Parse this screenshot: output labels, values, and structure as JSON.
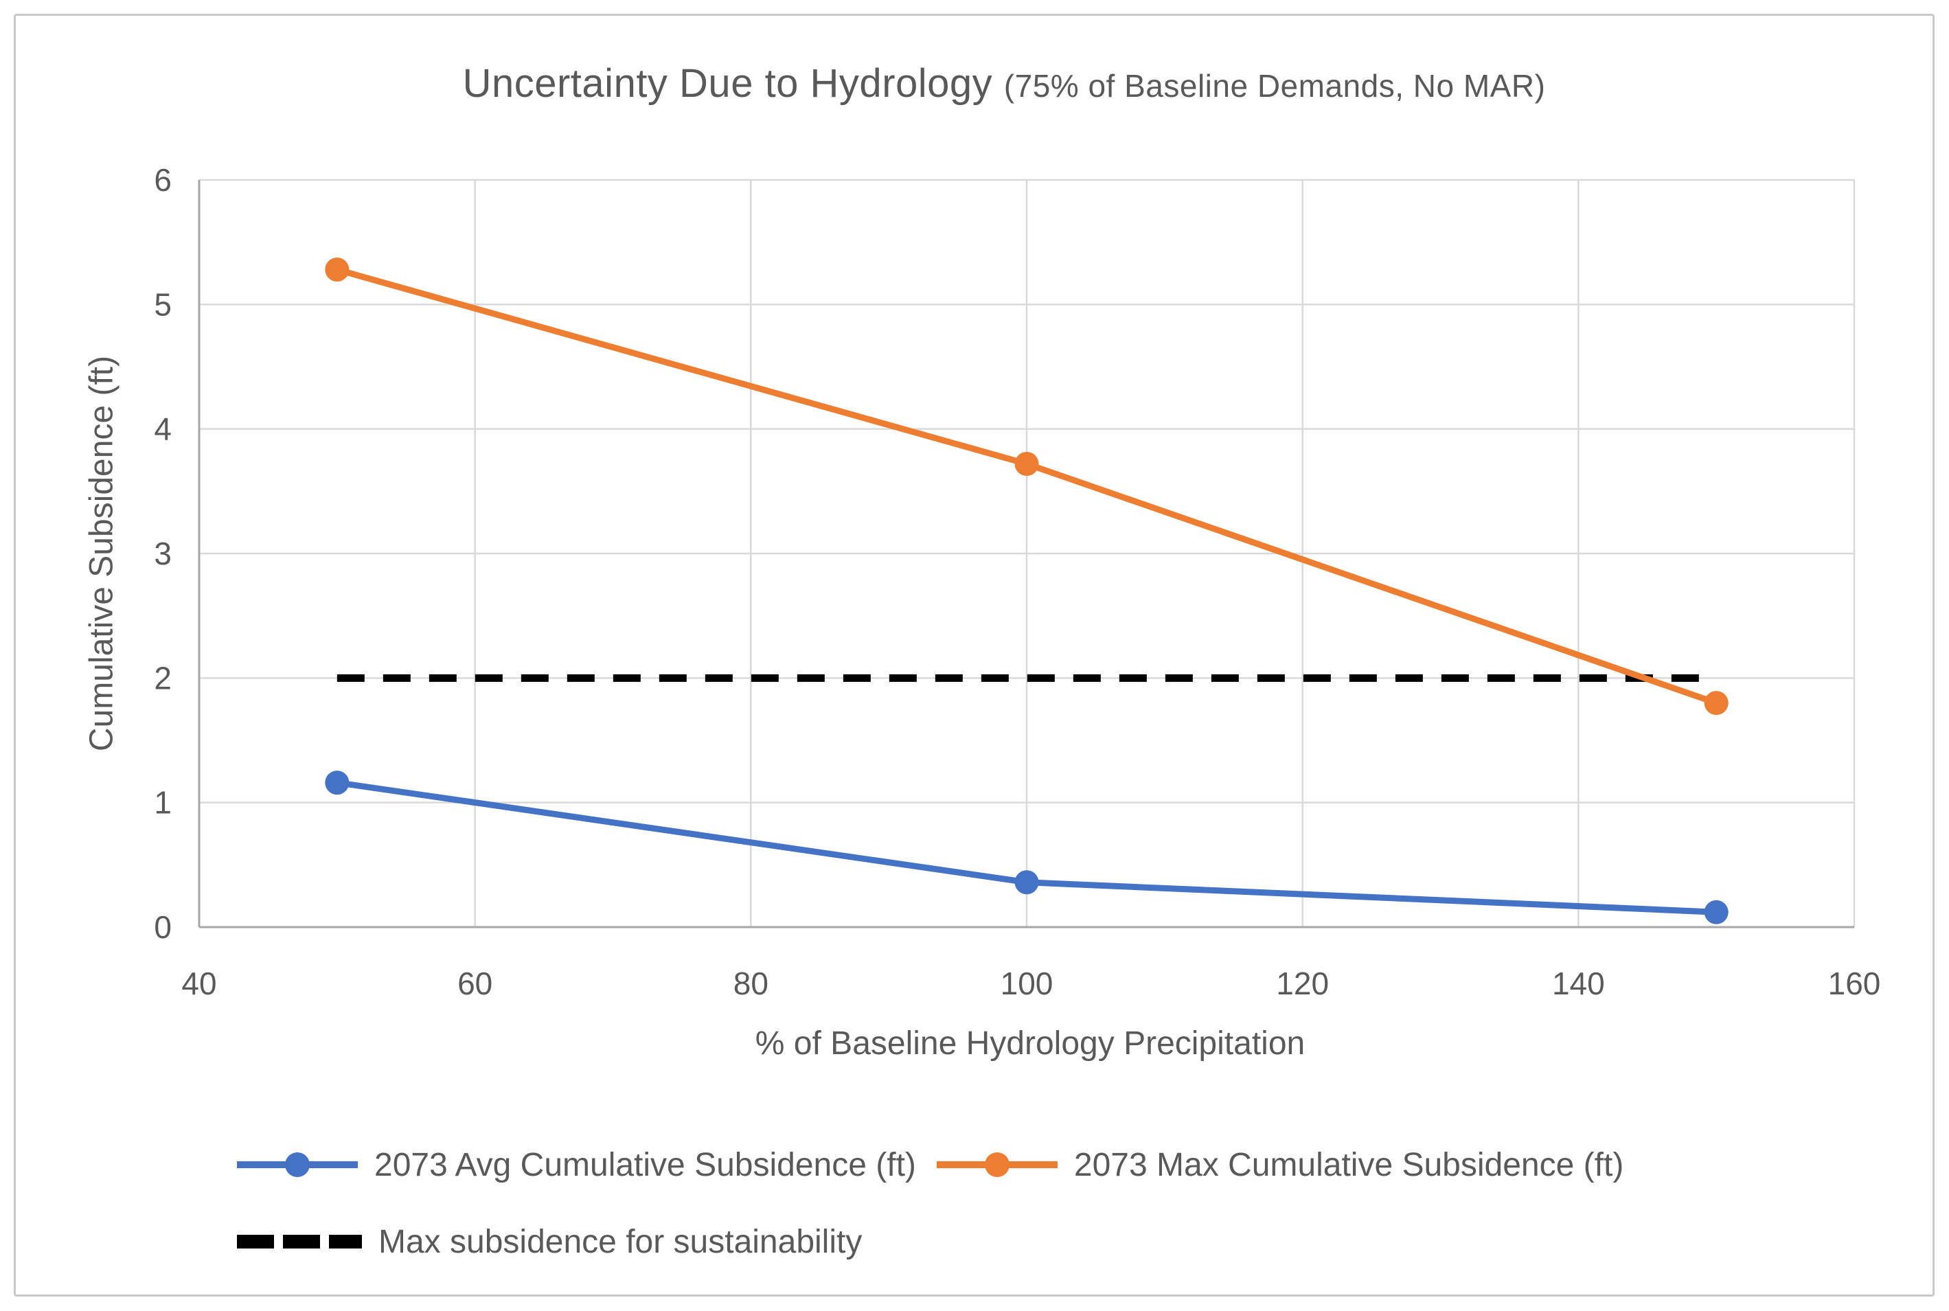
{
  "title": {
    "main": "Uncertainty Due to Hydrology",
    "sub": "(75% of Baseline Demands, No MAR)"
  },
  "colors": {
    "text": "#595959",
    "grid": "#d9d9d9",
    "axis": "#a6a6a6",
    "avg_series": "#4472c4",
    "max_series": "#ed7d31",
    "threshold": "#000000"
  },
  "chart_data": {
    "type": "line",
    "title": "Uncertainty Due to Hydrology (75% of Baseline Demands, No MAR)",
    "xlabel": "% of Baseline Hydrology Precipitation",
    "ylabel": "Cumulative Subsidence (ft)",
    "x": [
      50,
      100,
      150
    ],
    "series": [
      {
        "name": "2073 Avg Cumulative Subsidence (ft)",
        "color": "#4472c4",
        "values": [
          1.16,
          0.36,
          0.12
        ]
      },
      {
        "name": "2073 Max Cumulative Subsidence (ft)",
        "color": "#ed7d31",
        "values": [
          5.28,
          3.72,
          1.8
        ]
      }
    ],
    "threshold": {
      "name": "Max subsidence for sustainability",
      "value": 2,
      "x_start": 50,
      "x_end": 150,
      "color": "#000000",
      "style": "dashed"
    },
    "xlim": [
      40,
      160
    ],
    "ylim": [
      0,
      6
    ],
    "x_ticks": [
      40,
      60,
      80,
      100,
      120,
      140,
      160
    ],
    "y_ticks": [
      0,
      1,
      2,
      3,
      4,
      5,
      6
    ],
    "grid": true,
    "legend_position": "bottom"
  }
}
